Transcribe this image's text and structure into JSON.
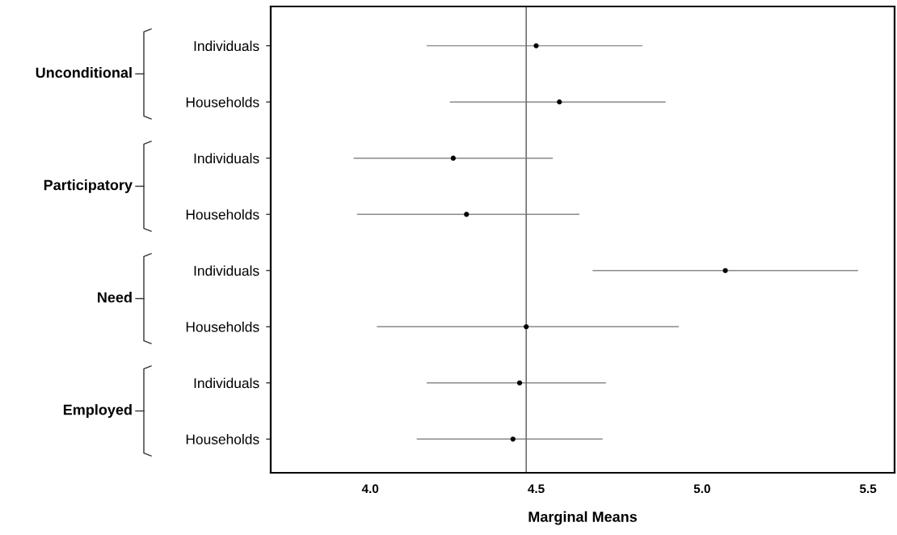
{
  "chart_data": {
    "type": "scatter",
    "xlabel": "Marginal Means",
    "categories": [
      "Individuals",
      "Households",
      "Individuals",
      "Households",
      "Individuals",
      "Households",
      "Individuals",
      "Households"
    ],
    "orientation": "horizontal",
    "values": [
      4.5,
      4.57,
      4.25,
      4.29,
      5.07,
      4.47,
      4.45,
      4.43
    ],
    "errors": [
      [
        4.17,
        4.82
      ],
      [
        4.24,
        4.89
      ],
      [
        3.95,
        4.55
      ],
      [
        3.96,
        4.63
      ],
      [
        4.67,
        5.47
      ],
      [
        4.02,
        4.93
      ],
      [
        4.17,
        4.71
      ],
      [
        4.14,
        4.7
      ]
    ],
    "color": "#000000",
    "marker": "circle",
    "xlim": [
      3.7,
      5.58
    ],
    "xticks": [
      {
        "value": 4.0,
        "label": "4.0"
      },
      {
        "value": 4.5,
        "label": "4.5"
      },
      {
        "value": 5.0,
        "label": "5.0"
      },
      {
        "value": 5.5,
        "label": "5.5"
      }
    ],
    "ref_lines": [
      {
        "axis": "x",
        "value": 4.47,
        "color": "#707070"
      }
    ],
    "annotations": [
      "Unconditional",
      "Participatory",
      "Need",
      "Employed"
    ],
    "grid": false
  }
}
